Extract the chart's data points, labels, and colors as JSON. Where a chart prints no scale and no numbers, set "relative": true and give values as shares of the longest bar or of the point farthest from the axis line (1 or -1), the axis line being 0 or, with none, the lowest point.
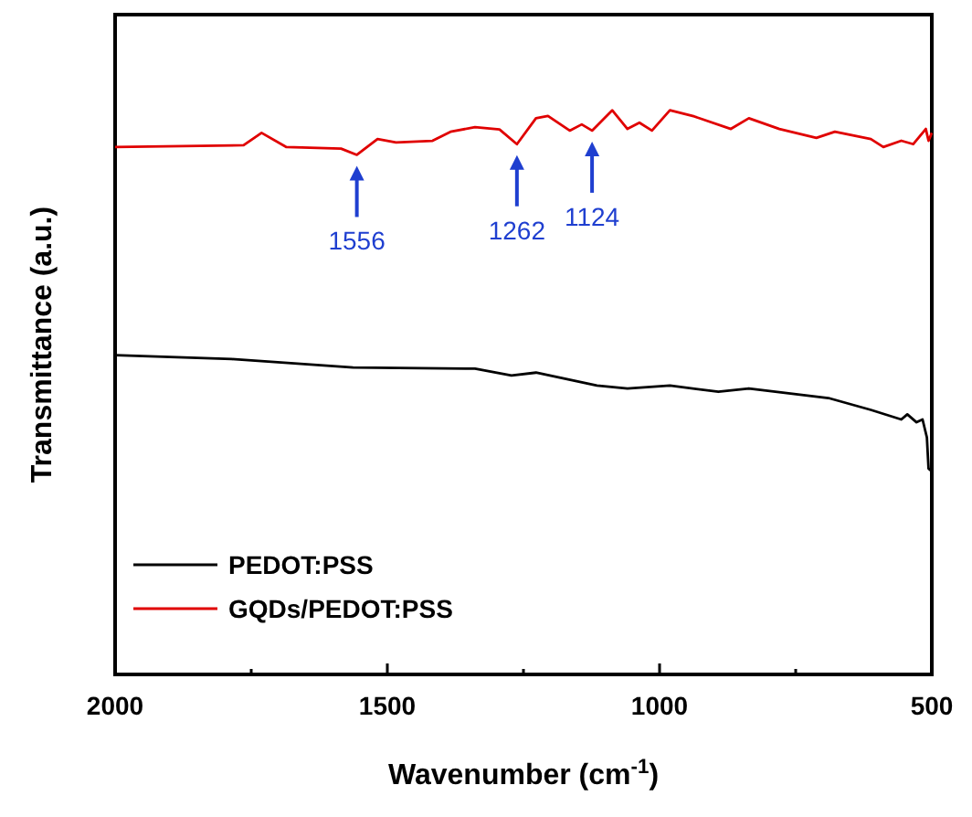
{
  "chart_data": {
    "type": "line",
    "relative": true,
    "xlabel": "Wavenumber (cm$^{-1}$)",
    "ylabel": "Transmittance (a.u.)",
    "xlim": [
      2000,
      500
    ],
    "xticks": [
      2000,
      {
        "value": 1750,
        "label": null
      },
      1500,
      {
        "value": 1250,
        "label": null
      },
      1000,
      {
        "value": 750,
        "label": null
      },
      500
    ],
    "legend": "bottom left",
    "tick_labels": "x",
    "series": [
      {
        "name": "PEDOT:PSS",
        "color": "#000000",
        "x": [
          2000,
          1786,
          1563,
          1339,
          1272,
          1227,
          1115,
          1059,
          981,
          892,
          836,
          690,
          612,
          556,
          545,
          528,
          517,
          509,
          506,
          500
        ],
        "values": [
          0.566,
          0.559,
          0.544,
          0.542,
          0.53,
          0.535,
          0.512,
          0.507,
          0.512,
          0.501,
          0.507,
          0.49,
          0.469,
          0.452,
          0.461,
          0.447,
          0.452,
          0.42,
          0.365,
          0.36
        ]
      },
      {
        "name": "GQDs/PEDOT:PSS",
        "color": "#e00000",
        "x": [
          2000,
          1764,
          1731,
          1686,
          1585,
          1556,
          1518,
          1484,
          1417,
          1384,
          1339,
          1294,
          1262,
          1227,
          1205,
          1165,
          1143,
          1124,
          1087,
          1059,
          1037,
          1014,
          981,
          936,
          869,
          836,
          780,
          712,
          678,
          612,
          589,
          556,
          534,
          511,
          506,
          500
        ],
        "values": [
          0.935,
          0.938,
          0.96,
          0.935,
          0.932,
          0.921,
          0.949,
          0.943,
          0.946,
          0.962,
          0.97,
          0.966,
          0.94,
          0.986,
          0.99,
          0.964,
          0.975,
          0.964,
          1.0,
          0.967,
          0.978,
          0.964,
          1.0,
          0.989,
          0.967,
          0.986,
          0.967,
          0.951,
          0.962,
          0.949,
          0.935,
          0.946,
          0.94,
          0.967,
          0.946,
          0.96
        ]
      }
    ],
    "annotations": [
      {
        "text": "1556",
        "x": 1556,
        "y": 0.921
      },
      {
        "text": "1262",
        "x": 1262,
        "y": 0.94
      },
      {
        "text": "1124",
        "x": 1124,
        "y": 0.964
      }
    ]
  }
}
